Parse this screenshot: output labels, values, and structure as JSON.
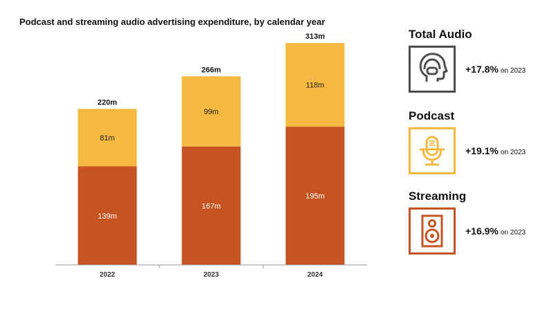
{
  "chart_data": {
    "type": "bar",
    "stacked": true,
    "title": "Podcast and streaming audio advertising expenditure, by calendar year",
    "categories": [
      "2022",
      "2023",
      "2024"
    ],
    "series": [
      {
        "values": [
          139,
          167,
          195
        ],
        "labels": [
          "139m",
          "167m",
          "195m"
        ],
        "color": "#C65422"
      },
      {
        "values": [
          81,
          99,
          118
        ],
        "labels": [
          "81m",
          "99m",
          "118m"
        ],
        "color": "#F5B841"
      }
    ],
    "totals": [
      "220m",
      "266m",
      "313m"
    ],
    "total_values": [
      220,
      266,
      313
    ],
    "ylim": [
      0,
      320
    ],
    "grid": false
  },
  "panels": [
    {
      "title": "Total Audio",
      "change": "+17.8%",
      "note": "on 2023",
      "color": "#4D4D4D",
      "icon": "head-headphones-icon"
    },
    {
      "title": "Podcast",
      "change": "+19.1%",
      "note": "on 2023",
      "color": "#F5B841",
      "icon": "microphone-icon"
    },
    {
      "title": "Streaming",
      "change": "+16.9%",
      "note": "on 2023",
      "color": "#C65422",
      "icon": "speaker-icon"
    }
  ]
}
